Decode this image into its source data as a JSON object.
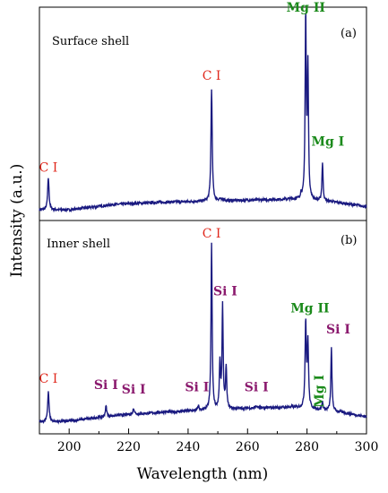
{
  "chart_data": {
    "type": "line",
    "xlabel": "Wavelength (nm)",
    "ylabel": "Intensity (a.u.)",
    "xlim": [
      190,
      300
    ],
    "xticks": [
      200,
      220,
      240,
      260,
      280,
      300
    ],
    "colors": {
      "line": "#1a1a80",
      "carbon": "#e0281c",
      "magnesium": "#1b8a1b",
      "silicon": "#8b1a6e"
    },
    "panels": [
      {
        "id": "a",
        "title": "Surface shell",
        "tag": "(a)",
        "ylim": [
          0,
          1.0
        ],
        "baseline": [
          [
            190,
            0.05
          ],
          [
            200,
            0.05
          ],
          [
            215,
            0.075
          ],
          [
            230,
            0.085
          ],
          [
            245,
            0.09
          ],
          [
            260,
            0.095
          ],
          [
            275,
            0.1
          ],
          [
            290,
            0.085
          ],
          [
            300,
            0.065
          ]
        ],
        "peaks": [
          {
            "x": 193.0,
            "y": 0.2,
            "w": 0.55
          },
          {
            "x": 247.9,
            "y": 0.62,
            "w": 0.5
          },
          {
            "x": 250.7,
            "y": 0.1,
            "w": 0.6
          },
          {
            "x": 252.0,
            "y": 0.1,
            "w": 0.6
          },
          {
            "x": 278.0,
            "y": 0.12,
            "w": 0.5
          },
          {
            "x": 279.55,
            "y": 0.95,
            "w": 0.45
          },
          {
            "x": 280.3,
            "y": 0.71,
            "w": 0.45
          },
          {
            "x": 285.2,
            "y": 0.27,
            "w": 0.45
          },
          {
            "x": 288.0,
            "y": 0.09,
            "w": 0.5
          }
        ],
        "labels": [
          {
            "text": "C I",
            "x": 193.0,
            "y": 0.23,
            "group": "carbon",
            "bold": false
          },
          {
            "text": "C I",
            "x": 247.9,
            "y": 0.66,
            "group": "carbon",
            "bold": false
          },
          {
            "text": "Mg II",
            "x": 279.6,
            "y": 0.98,
            "group": "magnesium",
            "bold": true
          },
          {
            "text": "Mg I",
            "x": 287.0,
            "y": 0.35,
            "group": "magnesium",
            "bold": true
          }
        ]
      },
      {
        "id": "b",
        "title": "Inner shell",
        "tag": "(b)",
        "ylim": [
          0,
          1.0
        ],
        "baseline": [
          [
            190,
            0.055
          ],
          [
            200,
            0.06
          ],
          [
            215,
            0.085
          ],
          [
            230,
            0.1
          ],
          [
            245,
            0.11
          ],
          [
            260,
            0.12
          ],
          [
            275,
            0.125
          ],
          [
            290,
            0.105
          ],
          [
            300,
            0.08
          ]
        ],
        "peaks": [
          {
            "x": 193.0,
            "y": 0.2,
            "w": 0.55
          },
          {
            "x": 212.4,
            "y": 0.13,
            "w": 0.55
          },
          {
            "x": 221.7,
            "y": 0.12,
            "w": 0.6
          },
          {
            "x": 243.5,
            "y": 0.13,
            "w": 0.5
          },
          {
            "x": 247.9,
            "y": 0.89,
            "w": 0.45
          },
          {
            "x": 250.7,
            "y": 0.33,
            "w": 0.45
          },
          {
            "x": 251.6,
            "y": 0.6,
            "w": 0.45
          },
          {
            "x": 252.8,
            "y": 0.31,
            "w": 0.45
          },
          {
            "x": 263.0,
            "y": 0.13,
            "w": 0.6
          },
          {
            "x": 279.55,
            "y": 0.52,
            "w": 0.5
          },
          {
            "x": 280.3,
            "y": 0.42,
            "w": 0.5
          },
          {
            "x": 285.2,
            "y": 0.15,
            "w": 0.45
          },
          {
            "x": 288.2,
            "y": 0.4,
            "w": 0.45
          }
        ],
        "labels": [
          {
            "text": "C I",
            "x": 193.0,
            "y": 0.24,
            "group": "carbon",
            "bold": false
          },
          {
            "text": "Si I",
            "x": 212.4,
            "y": 0.21,
            "group": "silicon",
            "bold": true
          },
          {
            "text": "Si I",
            "x": 221.7,
            "y": 0.19,
            "group": "silicon",
            "bold": true
          },
          {
            "text": "Si I",
            "x": 243.0,
            "y": 0.2,
            "group": "silicon",
            "bold": true
          },
          {
            "text": "C I",
            "x": 247.9,
            "y": 0.92,
            "group": "carbon",
            "bold": false
          },
          {
            "text": "Si I",
            "x": 252.5,
            "y": 0.65,
            "group": "silicon",
            "bold": true
          },
          {
            "text": "Si I",
            "x": 263.0,
            "y": 0.2,
            "group": "silicon",
            "bold": true
          },
          {
            "text": "Mg II",
            "x": 281.0,
            "y": 0.57,
            "group": "magnesium",
            "bold": true
          },
          {
            "text": "Mg I",
            "x": 285.5,
            "y": 0.2,
            "group": "magnesium",
            "bold": true,
            "rotate": true
          },
          {
            "text": "Si I",
            "x": 290.5,
            "y": 0.47,
            "group": "silicon",
            "bold": true
          }
        ]
      }
    ]
  }
}
